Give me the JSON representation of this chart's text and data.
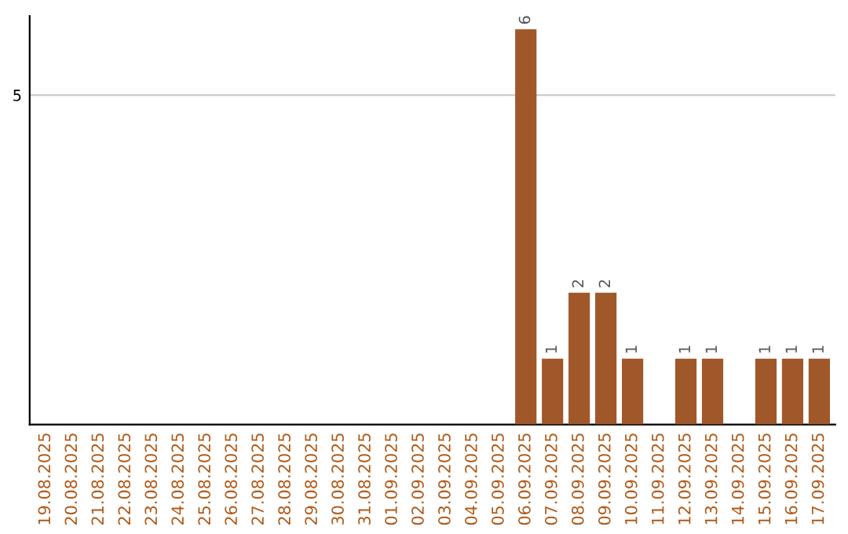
{
  "chart_data": {
    "type": "bar",
    "categories": [
      "19.08.2025",
      "20.08.2025",
      "21.08.2025",
      "22.08.2025",
      "23.08.2025",
      "24.08.2025",
      "25.08.2025",
      "26.08.2025",
      "27.08.2025",
      "28.08.2025",
      "29.08.2025",
      "30.08.2025",
      "31.08.2025",
      "01.09.2025",
      "02.09.2025",
      "03.09.2025",
      "04.09.2025",
      "05.09.2025",
      "06.09.2025",
      "07.09.2025",
      "08.09.2025",
      "09.09.2025",
      "10.09.2025",
      "11.09.2025",
      "12.09.2025",
      "13.09.2025",
      "14.09.2025",
      "15.09.2025",
      "16.09.2025",
      "17.09.2025"
    ],
    "values": [
      null,
      null,
      null,
      null,
      null,
      null,
      null,
      null,
      null,
      null,
      null,
      null,
      null,
      null,
      null,
      null,
      null,
      null,
      6,
      1,
      2,
      2,
      1,
      null,
      1,
      1,
      null,
      1,
      1,
      1
    ],
    "data_labels": true,
    "color": "#a0572a",
    "ylim": [
      0,
      6.2
    ],
    "yticks": [
      5
    ],
    "grid": "y"
  }
}
